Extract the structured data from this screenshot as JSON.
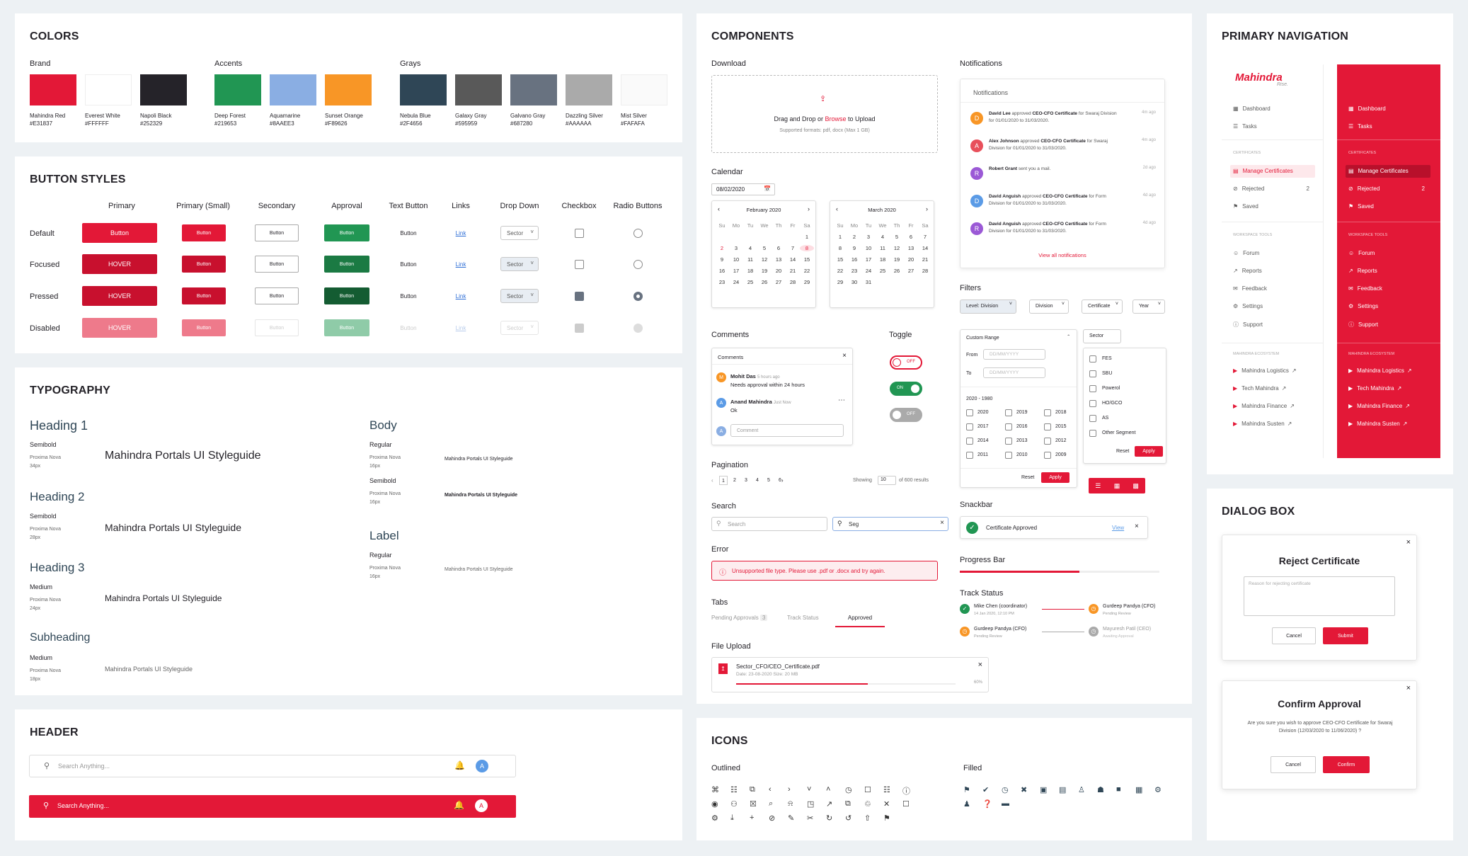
{
  "colors": {
    "title": "COLORS",
    "groups": [
      {
        "label": "Brand"
      },
      {
        "label": "Accents"
      },
      {
        "label": "Grays"
      }
    ],
    "swatches": [
      {
        "name": "Mahindra Red",
        "hex": "#E31837"
      },
      {
        "name": "Everest White",
        "hex": "#FFFFFF"
      },
      {
        "name": "Napoli Black",
        "hex": "#252329"
      },
      {
        "name": "Deep Forest",
        "hex": "#219653"
      },
      {
        "name": "Aquamarine",
        "hex": "#8AAEE3"
      },
      {
        "name": "Sunset Orange",
        "hex": "#F89626"
      },
      {
        "name": "Nebula Blue",
        "hex": "#2F4656"
      },
      {
        "name": "Galaxy Gray",
        "hex": "#595959"
      },
      {
        "name": "Galvano Gray",
        "hex": "#687280"
      },
      {
        "name": "Dazzling Silver",
        "hex": "#AAAAAA"
      },
      {
        "name": "Mist Silver",
        "hex": "#FAFAFA"
      }
    ]
  },
  "buttons": {
    "title": "BUTTON STYLES",
    "columns": [
      "Primary",
      "Primary (Small)",
      "Secondary",
      "Approval",
      "Text Button",
      "Links",
      "Drop Down",
      "Checkbox",
      "Radio Buttons"
    ],
    "rows": [
      "Default",
      "Focused",
      "Pressed",
      "Disabled"
    ],
    "button": "Button",
    "hover": "HOVER",
    "link": "Link",
    "sector": "Sector"
  },
  "typography": {
    "title": "TYPOGRAPHY",
    "sample": "Mahindra Portals UI Styleguide",
    "font": "Proxima Nova",
    "left": [
      {
        "name": "Heading 1",
        "weight": "Semibold",
        "size": "34px"
      },
      {
        "name": "Heading 2",
        "weight": "Semibold",
        "size": "28px"
      },
      {
        "name": "Heading 3",
        "weight": "Medium",
        "size": "24px"
      },
      {
        "name": "Subheading",
        "weight": "Medium",
        "size": "18px"
      }
    ],
    "right": [
      {
        "name": "Body",
        "weight": "Regular",
        "size": "16px"
      },
      {
        "weight": "Semibold",
        "size": "16px"
      },
      {
        "name": "Label",
        "weight": "Regular",
        "size": "16px"
      }
    ]
  },
  "header": {
    "title": "HEADER",
    "search": "Search Anything...",
    "avatar": "A"
  },
  "components": {
    "title": "COMPONENTS",
    "download": {
      "label": "Download",
      "text1": "Drag and Drop or ",
      "browse": "Browse",
      "text2": " to Upload",
      "formats": "Supported formats: pdf, docx (Max 1 GB)"
    },
    "calendar": {
      "label": "Calendar",
      "value": "08/02/2020",
      "months": [
        "February 2020",
        "March 2020"
      ],
      "days": [
        "Su",
        "Mo",
        "Tu",
        "We",
        "Th",
        "Fr",
        "Sa"
      ],
      "feb": [
        "",
        "",
        "",
        "",
        "",
        "",
        "1",
        "2",
        "3",
        "4",
        "5",
        "6",
        "7",
        "8",
        "9",
        "10",
        "11",
        "12",
        "13",
        "14",
        "15",
        "16",
        "17",
        "18",
        "19",
        "20",
        "21",
        "22",
        "23",
        "24",
        "25",
        "26",
        "27",
        "28",
        "29"
      ],
      "mar": [
        "1",
        "2",
        "3",
        "4",
        "5",
        "6",
        "7",
        "8",
        "9",
        "10",
        "11",
        "12",
        "13",
        "14",
        "15",
        "16",
        "17",
        "18",
        "19",
        "20",
        "21",
        "22",
        "23",
        "24",
        "25",
        "26",
        "27",
        "28",
        "29",
        "30",
        "31"
      ],
      "febFirst": [
        "",
        "",
        "",
        "",
        "",
        "",
        "1"
      ]
    },
    "notifications": {
      "label": "Notifications",
      "header": "Notifications",
      "footer": "View all notifications",
      "items": [
        {
          "avatar": "D",
          "color": "#F89626",
          "name": "David Lee",
          "action": " approved ",
          "subject": "CEO-CFO Certificate",
          "rest": " for Swaraj Division for 01/01/2020 to 31/03/2020.",
          "time": "4m ago"
        },
        {
          "avatar": "A",
          "color": "#E8505B",
          "name": "Alex Johnson",
          "action": " approved ",
          "subject": "CEO-CFO Certificate",
          "rest": " for Swaraj Division for 01/01/2020 to 31/03/2020.",
          "time": "4m ago"
        },
        {
          "avatar": "R",
          "color": "#9B59D6",
          "name": "Robert Grant",
          "action": " sent you a mail.",
          "subject": "",
          "rest": "",
          "time": "2d ago"
        },
        {
          "avatar": "D",
          "color": "#5B9BE6",
          "name": "David Anguish",
          "action": " approved ",
          "subject": "CEO-CFO Certificate",
          "rest": " for Form Division for 01/01/2020 to 31/03/2020.",
          "time": "4d ago"
        },
        {
          "avatar": "R",
          "color": "#9B59D6",
          "name": "David Anguish",
          "action": " approved ",
          "subject": "CEO-CFO Certificate",
          "rest": " for Form Division for 01/01/2020 to 31/03/2020.",
          "time": "4d ago"
        }
      ]
    },
    "filters": {
      "label": "Filters",
      "chips": [
        "Level: Division",
        "Division",
        "Certificate",
        "Year"
      ],
      "custom": "Custom Range",
      "from": "From",
      "to": "To",
      "placeholder": "DD/MM/YYYY",
      "range": "2020 - 1980",
      "years": [
        "2020",
        "2019",
        "2018",
        "2017",
        "2016",
        "2015",
        "2014",
        "2013",
        "2012",
        "2011",
        "2010",
        "2009"
      ],
      "reset": "Reset",
      "apply": "Apply",
      "sector": "Sector",
      "sectors": [
        "FES",
        "SBU",
        "Powerol",
        "HO/GCO",
        "AS",
        "Other Segment"
      ]
    },
    "comments": {
      "label": "Comments",
      "header": "Comments",
      "c1name": "Mohit Das",
      "c1time": "5 hours ago",
      "c1text": "Needs approval within 24 hours",
      "c2name": "Anand Mahindra",
      "c2time": "Just Now",
      "c2text": "Ok",
      "placeholder": "Comment"
    },
    "toggle": {
      "label": "Toggle",
      "off": "OFF",
      "on": "ON"
    },
    "pagination": {
      "label": "Pagination",
      "pages": [
        "1",
        "2",
        "3",
        "4",
        "5",
        "6"
      ],
      "showing": "Showing",
      "count": "10",
      "of": "of 600 results"
    },
    "search": {
      "label": "Search",
      "placeholder": "Search",
      "value": "Seg"
    },
    "error": {
      "label": "Error",
      "text": "Unsupported file type.",
      "text2": " Please use .pdf or .docx and try again."
    },
    "tabs": {
      "label": "Tabs",
      "items": [
        "Pending Approvals",
        "Track Status",
        "Approved"
      ],
      "badge": "3"
    },
    "fileupload": {
      "label": "File Upload",
      "name": "Sector_CFO/CEO_Certificate.pdf",
      "meta": "Date: 23-08-2020   Size: 20 MB",
      "pct": "60%",
      "progress": 0.6
    },
    "snackbar": {
      "label": "Snackbar",
      "text": "Certificate Approved",
      "action": "View"
    },
    "progress": {
      "label": "Progress Bar",
      "value": 0.6
    },
    "track": {
      "label": "Track Status",
      "items": [
        {
          "name": "Mike Chen (coordinator)",
          "sub": "14 Jan 2020, 12:10 PM"
        },
        {
          "name": "Gurdeep Pandya (CFO)",
          "sub": "Pending Review"
        },
        {
          "name": "Gurdeep Pandya (CFO)",
          "sub": "Pending Review"
        },
        {
          "name": "Mayuresh Patil (CEO)",
          "sub": "Awaiting Approval"
        }
      ]
    }
  },
  "icons": {
    "title": "ICONS",
    "outlined": "Outlined",
    "filled": "Filled"
  },
  "nav": {
    "title": "PRIMARY NAVIGATION",
    "logo": "Mahindra",
    "logosub": "Rise.",
    "items": [
      "Dashboard",
      "Tasks"
    ],
    "cert": "CERTIFICATES",
    "certItems": [
      "Manage Certificates",
      "Rejected",
      "Saved"
    ],
    "rejCount": "2",
    "ws": "WORKSPACE TOOLS",
    "wsItems": [
      "Forum",
      "Reports",
      "Feedback",
      "Settings",
      "Support"
    ],
    "eco": "MAHINDRA ECOSYSTEM",
    "ecoItems": [
      "Mahindra Logistics",
      "Tech Mahindra",
      "Mahindra Finance",
      "Mahindra Susten"
    ]
  },
  "dialog": {
    "title": "DIALOG BOX",
    "reject": "Reject Certificate",
    "placeholder": "Reason for rejecting certificate",
    "cancel": "Cancel",
    "submit": "Submit",
    "confirm": "Confirm Approval",
    "confirmText": "Are you sure you wish to approve CEO-CFO Certificate for Swaraj Division (12/03/2020 to 11/06/2020) ?",
    "confirmBtn": "Confirm"
  }
}
